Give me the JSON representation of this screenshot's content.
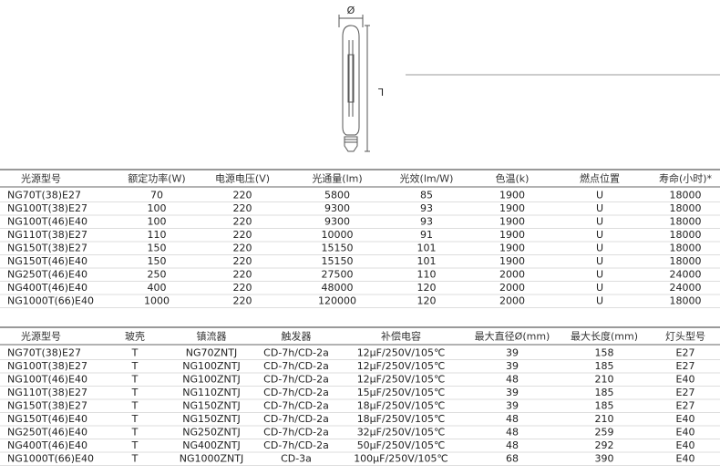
{
  "diagram": {
    "diameter_label": "Ø",
    "length_label": "L"
  },
  "table1": {
    "header": [
      "光源型号",
      "额定功率(W)",
      "电源电压(V)",
      "光通量(lm)",
      "光效(lm/W)",
      "色温(k)",
      "燃点位置",
      "寿命(小时)*"
    ],
    "rows": [
      [
        "NG70T(38)E27",
        "70",
        "220",
        "5800",
        "85",
        "1900",
        "U",
        "18000"
      ],
      [
        "NG100T(38)E27",
        "100",
        "220",
        "9300",
        "93",
        "1900",
        "U",
        "18000"
      ],
      [
        "NG100T(46)E40",
        "100",
        "220",
        "9300",
        "93",
        "1900",
        "U",
        "18000"
      ],
      [
        "NG110T(38)E27",
        "110",
        "220",
        "10000",
        "91",
        "1900",
        "U",
        "18000"
      ],
      [
        "NG150T(38)E27",
        "150",
        "220",
        "15150",
        "101",
        "1900",
        "U",
        "18000"
      ],
      [
        "NG150T(46)E40",
        "150",
        "220",
        "15150",
        "101",
        "1900",
        "U",
        "18000"
      ],
      [
        "NG250T(46)E40",
        "250",
        "220",
        "27500",
        "110",
        "2000",
        "U",
        "24000"
      ],
      [
        "NG400T(46)E40",
        "400",
        "220",
        "48000",
        "120",
        "2000",
        "U",
        "24000"
      ],
      [
        "NG1000T(66)E40",
        "1000",
        "220",
        "120000",
        "120",
        "2000",
        "U",
        "18000"
      ]
    ]
  },
  "table2": {
    "header": [
      "光源型号",
      "玻壳",
      "镇流器",
      "触发器",
      "补偿电容",
      "最大直径Ø(mm)",
      "最大长度(mm)",
      "灯头型号"
    ],
    "rows": [
      [
        "NG70T(38)E27",
        "T",
        "NG70ZNTJ",
        "CD-7h/CD-2a",
        "12μF/250V/105℃",
        "39",
        "158",
        "E27"
      ],
      [
        "NG100T(38)E27",
        "T",
        "NG100ZNTJ",
        "CD-7h/CD-2a",
        "12μF/250V/105℃",
        "39",
        "185",
        "E27"
      ],
      [
        "NG100T(46)E40",
        "T",
        "NG100ZNTJ",
        "CD-7h/CD-2a",
        "12μF/250V/105℃",
        "48",
        "210",
        "E40"
      ],
      [
        "NG110T(38)E27",
        "T",
        "NG110ZNTJ",
        "CD-7h/CD-2a",
        "15μF/250V/105℃",
        "39",
        "185",
        "E27"
      ],
      [
        "NG150T(38)E27",
        "T",
        "NG150ZNTJ",
        "CD-7h/CD-2a",
        "18μF/250V/105℃",
        "39",
        "185",
        "E27"
      ],
      [
        "NG150T(46)E40",
        "T",
        "NG150ZNTJ",
        "CD-7h/CD-2a",
        "18μF/250V/105℃",
        "48",
        "210",
        "E40"
      ],
      [
        "NG250T(46)E40",
        "T",
        "NG250ZNTJ",
        "CD-7h/CD-2a",
        "32μF/250V/105℃",
        "48",
        "259",
        "E40"
      ],
      [
        "NG400T(46)E40",
        "T",
        "NG400ZNTJ",
        "CD-7h/CD-2a",
        "50μF/250V/105℃",
        "48",
        "292",
        "E40"
      ],
      [
        "NG1000T(66)E40",
        "T",
        "NG1000ZNTJ",
        "CD-3a",
        "100μF/250V/105℃",
        "68",
        "390",
        "E40"
      ]
    ]
  }
}
